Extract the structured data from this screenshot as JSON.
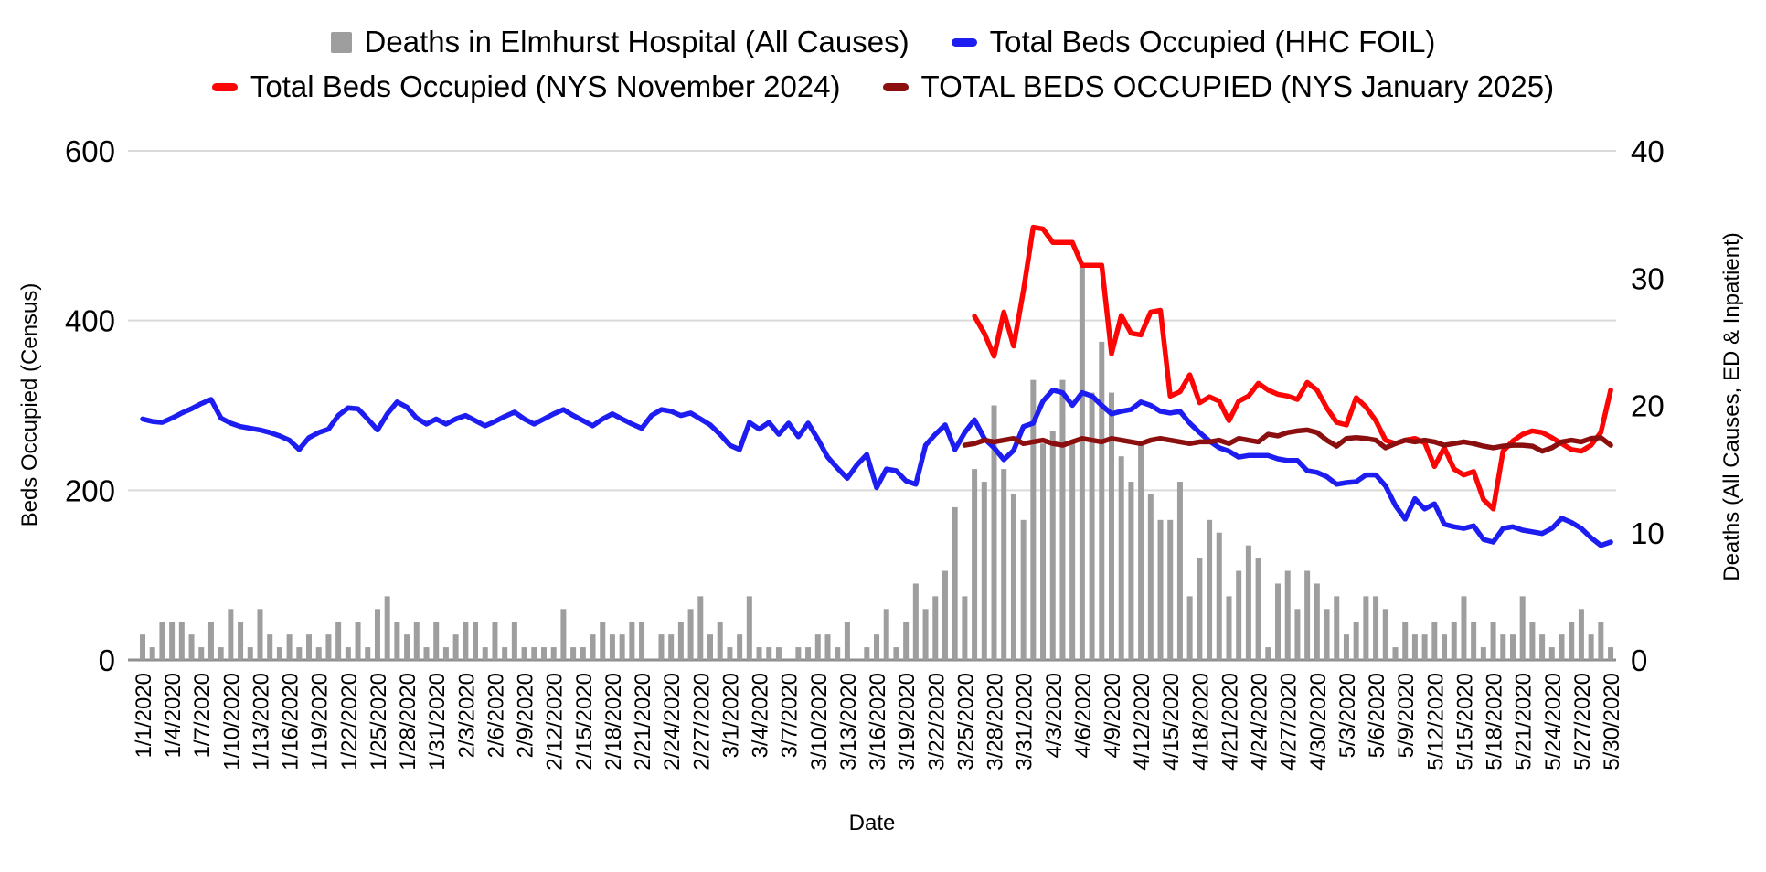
{
  "legend": {
    "items": [
      {
        "label": "Deaths in Elmhurst Hospital (All Causes)",
        "swatch": "bar"
      },
      {
        "label": "Total Beds Occupied (HHC FOIL)",
        "swatch": "blue"
      },
      {
        "label": "Total Beds Occupied (NYS November 2024)",
        "swatch": "red"
      },
      {
        "label": "TOTAL BEDS OCCUPIED (NYS January 2025)",
        "swatch": "dark_red"
      }
    ]
  },
  "axes": {
    "left_title": "Beds Occupied (Census)",
    "right_title": "Deaths (All Causes, ED & Inpatient)",
    "x_title": "Date"
  },
  "chart_data": {
    "type": "combo-bar-line",
    "title": "",
    "legend_position": "top",
    "grid": "horizontal-only",
    "start_date": "1/1/2020",
    "end_date": "5/30/2020",
    "days": 151,
    "x_tick_step_days": 3,
    "x_tick_labels": [
      "1/1/2020",
      "1/4/2020",
      "1/7/2020",
      "1/10/2020",
      "1/13/2020",
      "1/16/2020",
      "1/19/2020",
      "1/22/2020",
      "1/25/2020",
      "1/28/2020",
      "1/31/2020",
      "2/3/2020",
      "2/6/2020",
      "2/9/2020",
      "2/12/2020",
      "2/15/2020",
      "2/18/2020",
      "2/21/2020",
      "2/24/2020",
      "2/27/2020",
      "3/1/2020",
      "3/4/2020",
      "3/7/2020",
      "3/10/2020",
      "3/13/2020",
      "3/16/2020",
      "3/19/2020",
      "3/22/2020",
      "3/25/2020",
      "3/28/2020",
      "3/31/2020",
      "4/3/2020",
      "4/6/2020",
      "4/9/2020",
      "4/12/2020",
      "4/15/2020",
      "4/18/2020",
      "4/21/2020",
      "4/24/2020",
      "4/27/2020",
      "4/30/2020",
      "5/3/2020",
      "5/6/2020",
      "5/9/2020",
      "5/12/2020",
      "5/15/2020",
      "5/18/2020",
      "5/21/2020",
      "5/24/2020",
      "5/27/2020",
      "5/30/2020"
    ],
    "y_left": {
      "label": "Beds Occupied (Census)",
      "range": [
        0,
        600
      ],
      "ticks": [
        0,
        200,
        400,
        600
      ]
    },
    "y_right": {
      "label": "Deaths (All Causes, ED & Inpatient)",
      "range": [
        0,
        40
      ],
      "ticks": [
        0,
        10,
        20,
        30,
        40
      ]
    },
    "colors": {
      "bar": "#9e9e9e",
      "blue": "#1d1df2",
      "red": "#fb0505",
      "dark_red": "#8b0f0f",
      "grid": "#d9d9d9",
      "axis_line": "#8f8f8f",
      "text": "#000000"
    },
    "series": [
      {
        "name": "Deaths in Elmhurst Hospital (All Causes)",
        "type": "bar",
        "axis": "right",
        "color_key": "bar",
        "start_index": 0,
        "values": [
          2,
          1,
          3,
          3,
          3,
          2,
          1,
          3,
          1,
          4,
          3,
          1,
          4,
          2,
          1,
          2,
          1,
          2,
          1,
          2,
          3,
          1,
          3,
          1,
          4,
          5,
          3,
          2,
          3,
          1,
          3,
          1,
          2,
          3,
          3,
          1,
          3,
          1,
          3,
          1,
          1,
          1,
          1,
          4,
          1,
          1,
          2,
          3,
          2,
          2,
          3,
          3,
          0,
          2,
          2,
          3,
          4,
          5,
          2,
          3,
          1,
          2,
          5,
          1,
          1,
          1,
          0,
          1,
          1,
          2,
          2,
          1,
          3,
          0,
          1,
          2,
          4,
          1,
          3,
          6,
          4,
          5,
          7,
          12,
          5,
          15,
          14,
          20,
          15,
          13,
          11,
          22,
          17,
          18,
          22,
          17,
          31,
          21,
          25,
          21,
          16,
          14,
          17,
          13,
          11,
          11,
          14,
          5,
          8,
          11,
          10,
          5,
          7,
          9,
          8,
          1,
          6,
          7,
          4,
          7,
          6,
          4,
          5,
          2,
          3,
          5,
          5,
          4,
          1,
          3,
          2,
          2,
          3,
          2,
          3,
          5,
          3,
          1,
          3,
          2,
          2,
          5,
          3,
          2,
          1,
          2,
          3,
          4,
          2,
          3,
          1
        ]
      },
      {
        "name": "Total Beds Occupied (HHC FOIL)",
        "type": "line",
        "axis": "left",
        "color_key": "blue",
        "start_index": 0,
        "values": [
          284,
          281,
          280,
          285,
          291,
          296,
          302,
          307,
          285,
          279,
          275,
          273,
          271,
          268,
          264,
          259,
          248,
          262,
          268,
          272,
          288,
          297,
          296,
          284,
          271,
          290,
          304,
          298,
          285,
          278,
          284,
          278,
          284,
          288,
          282,
          276,
          281,
          287,
          292,
          284,
          278,
          284,
          290,
          295,
          288,
          282,
          276,
          284,
          290,
          284,
          278,
          273,
          288,
          295,
          293,
          288,
          291,
          284,
          277,
          266,
          253,
          248,
          280,
          272,
          280,
          266,
          279,
          263,
          279,
          260,
          239,
          226,
          214,
          230,
          242,
          203,
          225,
          223,
          211,
          207,
          253,
          266,
          277,
          248,
          268,
          283,
          261,
          250,
          236,
          247,
          275,
          279,
          305,
          318,
          315,
          300,
          315,
          311,
          300,
          290,
          293,
          295,
          304,
          300,
          293,
          291,
          293,
          279,
          268,
          258,
          250,
          246,
          239,
          241,
          241,
          241,
          237,
          235,
          235,
          223,
          221,
          216,
          207,
          209,
          210,
          218,
          218,
          205,
          182,
          166,
          190,
          178,
          184,
          160,
          157,
          155,
          158,
          142,
          139,
          155,
          157,
          153,
          151,
          149,
          155,
          167,
          162,
          155,
          144,
          135,
          139
        ]
      },
      {
        "name": "Total Beds Occupied (NYS November 2024)",
        "type": "line",
        "axis": "left",
        "color_key": "red",
        "start_index": 85,
        "values": [
          405,
          385,
          358,
          410,
          370,
          435,
          510,
          508,
          492,
          492,
          492,
          465,
          465,
          465,
          361,
          406,
          385,
          383,
          410,
          412,
          311,
          316,
          336,
          303,
          310,
          305,
          282,
          305,
          311,
          326,
          318,
          313,
          311,
          307,
          327,
          318,
          297,
          280,
          277,
          309,
          298,
          282,
          259,
          255,
          259,
          261,
          256,
          228,
          250,
          225,
          218,
          222,
          189,
          178,
          246,
          258,
          266,
          270,
          268,
          262,
          255,
          248,
          246,
          253,
          268,
          318
        ]
      },
      {
        "name": "TOTAL BEDS OCCUPIED (NYS January 2025)",
        "type": "line",
        "axis": "left",
        "color_key": "dark_red",
        "start_index": 84,
        "values": [
          253,
          255,
          259,
          257,
          259,
          261,
          255,
          257,
          259,
          255,
          253,
          257,
          261,
          259,
          257,
          261,
          259,
          257,
          255,
          259,
          261,
          259,
          257,
          255,
          257,
          257,
          259,
          255,
          261,
          259,
          257,
          266,
          264,
          268,
          270,
          271,
          268,
          259,
          252,
          261,
          262,
          261,
          259,
          250,
          255,
          259,
          257,
          259,
          257,
          253,
          255,
          257,
          255,
          252,
          250,
          252,
          253,
          253,
          252,
          246,
          250,
          257,
          259,
          257,
          261,
          262,
          253
        ]
      }
    ]
  }
}
